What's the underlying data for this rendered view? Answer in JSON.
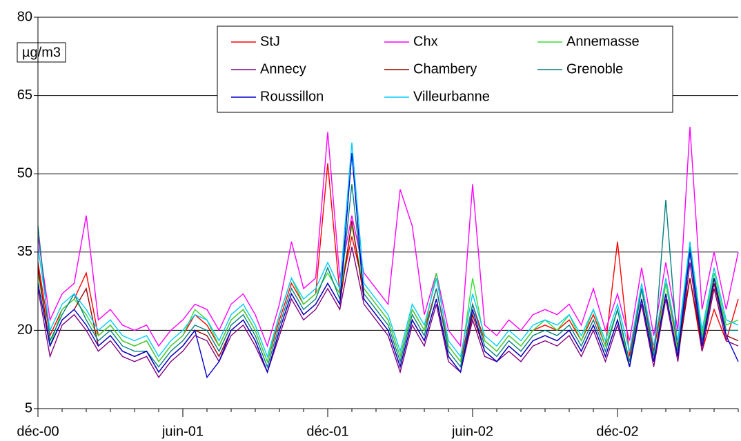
{
  "chart_data": {
    "type": "line",
    "annotation": "µg/m3",
    "x": [
      0,
      0.5,
      1,
      1.5,
      2,
      2.5,
      3,
      3.5,
      4,
      4.5,
      5,
      5.5,
      6,
      6.5,
      7,
      7.5,
      8,
      8.5,
      9,
      9.5,
      10,
      10.5,
      11,
      11.5,
      12,
      12.5,
      13,
      13.5,
      14,
      14.5,
      15,
      15.5,
      16,
      16.5,
      17,
      17.5,
      18,
      18.5,
      19,
      19.5,
      20,
      20.5,
      21,
      21.5,
      22,
      22.5,
      23,
      23.5,
      24,
      24.5,
      25,
      25.5,
      26,
      26.5,
      27,
      27.5,
      28,
      28.5,
      29
    ],
    "xlim": [
      0,
      29
    ],
    "xticks": [
      {
        "value": 0,
        "label": "déc-00"
      },
      {
        "value": 6,
        "label": "juin-01"
      },
      {
        "value": 12,
        "label": "déc-01"
      },
      {
        "value": 18,
        "label": "juin-02"
      },
      {
        "value": 24,
        "label": "déc-02"
      }
    ],
    "ylim": [
      5,
      80
    ],
    "yticks": [
      5,
      20,
      35,
      50,
      65,
      80
    ],
    "grid": true,
    "legend": "top",
    "series": [
      {
        "name": "StJ",
        "color": "#ff0000",
        "values": [
          33,
          19,
          24,
          26,
          31,
          19,
          21,
          18,
          17,
          18,
          14,
          17,
          19,
          23,
          21,
          17,
          22,
          24,
          20,
          14,
          22,
          29,
          25,
          27,
          52,
          27,
          38,
          28,
          25,
          22,
          15,
          24,
          20,
          28,
          17,
          14,
          25,
          18,
          16,
          19,
          17,
          20,
          21,
          20,
          22,
          18,
          23,
          17,
          37,
          15,
          28,
          16,
          29,
          17,
          30,
          16,
          24,
          18,
          26
        ]
      },
      {
        "name": "Chx",
        "color": "#ff00ff",
        "values": [
          38,
          22,
          27,
          29,
          42,
          22,
          24,
          21,
          20,
          21,
          17,
          20,
          22,
          25,
          24,
          20,
          25,
          27,
          23,
          17,
          25,
          37,
          28,
          30,
          58,
          30,
          42,
          31,
          28,
          25,
          47,
          40,
          23,
          31,
          20,
          17,
          48,
          21,
          19,
          22,
          20,
          23,
          24,
          23,
          25,
          21,
          28,
          20,
          27,
          18,
          32,
          19,
          33,
          20,
          59,
          24,
          35,
          24,
          35
        ]
      },
      {
        "name": "Annemasse",
        "color": "#33dd33",
        "values": [
          31,
          17,
          24,
          26,
          23,
          19,
          21,
          18,
          17,
          18,
          14,
          17,
          19,
          24,
          22,
          17,
          22,
          24,
          20,
          14,
          23,
          30,
          25,
          27,
          31,
          27,
          40,
          28,
          25,
          22,
          15,
          24,
          20,
          31,
          17,
          14,
          30,
          18,
          16,
          19,
          17,
          20,
          22,
          20,
          23,
          18,
          24,
          17,
          24,
          13,
          28,
          14,
          29,
          16,
          36,
          19,
          31,
          21,
          22
        ]
      },
      {
        "name": "Annecy",
        "color": "#800080",
        "values": [
          28,
          15,
          21,
          23,
          20,
          16,
          18,
          15,
          14,
          15,
          11,
          14,
          16,
          19,
          18,
          14,
          19,
          21,
          17,
          12,
          19,
          26,
          22,
          24,
          28,
          24,
          36,
          25,
          22,
          19,
          12,
          21,
          17,
          25,
          14,
          12,
          22,
          15,
          14,
          16,
          14,
          17,
          18,
          17,
          19,
          15,
          20,
          14,
          21,
          13,
          25,
          13,
          26,
          14,
          33,
          16,
          28,
          18,
          17
        ]
      },
      {
        "name": "Chambery",
        "color": "#990000",
        "values": [
          32,
          17,
          22,
          24,
          28,
          17,
          19,
          16,
          15,
          16,
          12,
          15,
          17,
          20,
          19,
          15,
          20,
          22,
          18,
          12,
          20,
          27,
          23,
          25,
          29,
          25,
          41,
          26,
          23,
          20,
          13,
          22,
          18,
          26,
          15,
          12,
          23,
          16,
          14,
          17,
          15,
          18,
          19,
          18,
          20,
          16,
          21,
          15,
          22,
          13,
          26,
          14,
          27,
          15,
          30,
          17,
          29,
          19,
          18
        ]
      },
      {
        "name": "Grenoble",
        "color": "#008080",
        "values": [
          40,
          18,
          23,
          27,
          22,
          18,
          20,
          17,
          16,
          16,
          13,
          16,
          18,
          21,
          20,
          16,
          21,
          23,
          19,
          13,
          21,
          28,
          24,
          26,
          32,
          26,
          48,
          27,
          24,
          21,
          14,
          23,
          19,
          28,
          16,
          13,
          25,
          17,
          15,
          18,
          16,
          19,
          20,
          19,
          21,
          17,
          22,
          16,
          24,
          14,
          28,
          15,
          45,
          16,
          36,
          18,
          30,
          20,
          20
        ]
      },
      {
        "name": "Roussillon",
        "color": "#0000cc",
        "values": [
          29,
          17,
          22,
          24,
          21,
          17,
          19,
          16,
          15,
          16,
          12,
          15,
          17,
          20,
          11,
          14,
          20,
          22,
          18,
          12,
          20,
          27,
          23,
          25,
          29,
          25,
          54,
          26,
          23,
          20,
          13,
          22,
          18,
          26,
          15,
          12,
          24,
          16,
          14,
          17,
          15,
          18,
          19,
          18,
          20,
          16,
          21,
          15,
          22,
          13,
          26,
          14,
          27,
          15,
          35,
          17,
          30,
          19,
          14
        ]
      },
      {
        "name": "Villeurbanne",
        "color": "#00ccff",
        "values": [
          36,
          20,
          25,
          27,
          24,
          20,
          22,
          19,
          18,
          19,
          15,
          18,
          20,
          23,
          22,
          18,
          23,
          25,
          21,
          15,
          23,
          30,
          26,
          28,
          33,
          28,
          56,
          29,
          26,
          23,
          16,
          25,
          21,
          30,
          18,
          15,
          27,
          19,
          17,
          20,
          18,
          21,
          22,
          21,
          23,
          19,
          24,
          18,
          25,
          16,
          29,
          17,
          30,
          18,
          37,
          20,
          32,
          22,
          21
        ]
      }
    ]
  }
}
